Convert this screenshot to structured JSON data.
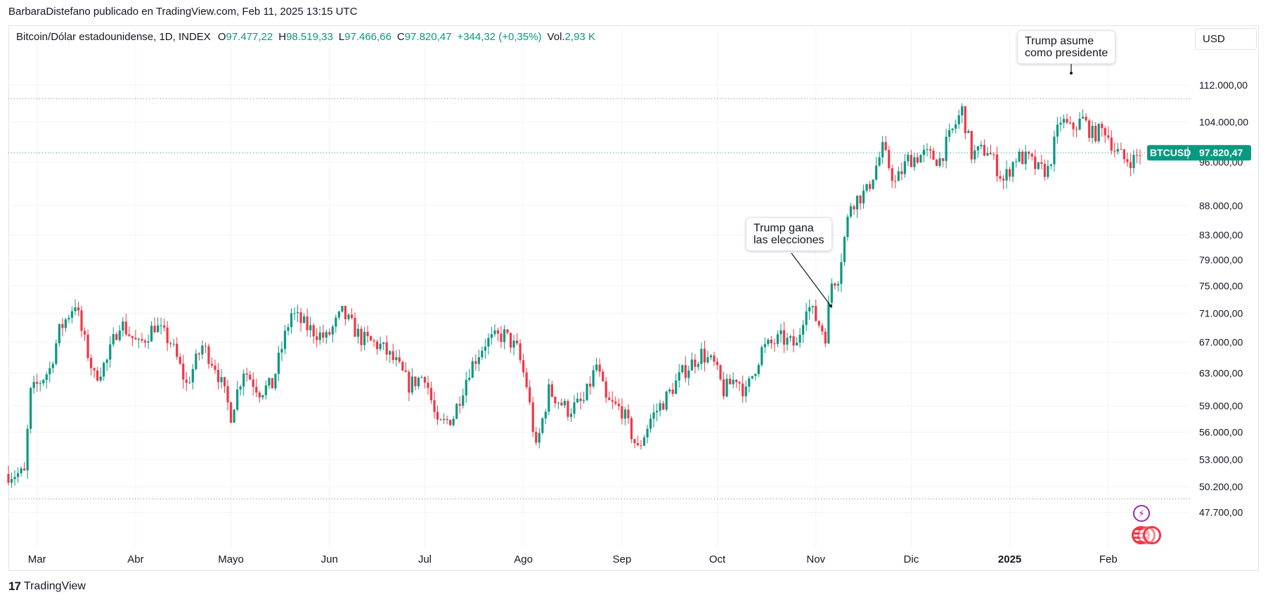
{
  "header": {
    "published_line": "BarbaraDistefano publicado en TradingView.com, Feb 11, 2025 13:15 UTC"
  },
  "legend": {
    "symbol": "Bitcoin/Dólar estadounidense, 1D, INDEX",
    "o_label": "O",
    "o_value": "97.477,22",
    "h_label": "H",
    "h_value": "98.519,33",
    "l_label": "L",
    "l_value": "97.466,66",
    "c_label": "C",
    "c_value": "97.820,47",
    "change": "+344,32 (+0,35%)",
    "vol_label": "Vol.",
    "vol_value": "2,93 K"
  },
  "currency_button": "USD",
  "price_tag": {
    "ticker": "BTCUSD",
    "price": "97.820,47",
    "color": "#089981"
  },
  "annotations": {
    "election": "Trump gana\nlas elecciones",
    "inauguration": "Trump asume\ncomo presidente"
  },
  "footer": {
    "brand": "TradingView"
  },
  "colors": {
    "up": "#089981",
    "down": "#f23645",
    "grid": "#f0f3fa",
    "axis_text": "#131722",
    "dotted_line": "#787b86"
  },
  "icons": [
    "flash-icon",
    "us-flag-icon"
  ],
  "chart_data": {
    "type": "candlestick",
    "title": "",
    "xlabel": "",
    "ylabel": "",
    "y_scale": "log",
    "ylim": [
      45000,
      122000
    ],
    "y_ticks": [
      {
        "value": 112000,
        "label": "112.000,00"
      },
      {
        "value": 104000,
        "label": "104.000,00"
      },
      {
        "value": 96000,
        "label": "96.000,00"
      },
      {
        "value": 88000,
        "label": "88.000,00"
      },
      {
        "value": 83000,
        "label": "83.000,00"
      },
      {
        "value": 79000,
        "label": "79.000,00"
      },
      {
        "value": 75000,
        "label": "75.000,00"
      },
      {
        "value": 71000,
        "label": "71.000,00"
      },
      {
        "value": 67000,
        "label": "67.000,00"
      },
      {
        "value": 63000,
        "label": "63.000,00"
      },
      {
        "value": 59000,
        "label": "59.000,00"
      },
      {
        "value": 56000,
        "label": "56.000,00"
      },
      {
        "value": 53000,
        "label": "53.000,00"
      },
      {
        "value": 50200,
        "label": "50.200,00"
      },
      {
        "value": 47700,
        "label": "47.700,00"
      }
    ],
    "x_ticks": [
      {
        "date": "2024-03-01",
        "label": "Mar",
        "bold": false
      },
      {
        "date": "2024-04-01",
        "label": "Abr",
        "bold": false
      },
      {
        "date": "2024-05-01",
        "label": "Mayo",
        "bold": false
      },
      {
        "date": "2024-06-01",
        "label": "Jun",
        "bold": false
      },
      {
        "date": "2024-07-01",
        "label": "Jul",
        "bold": false
      },
      {
        "date": "2024-08-01",
        "label": "Ago",
        "bold": false
      },
      {
        "date": "2024-09-01",
        "label": "Sep",
        "bold": false
      },
      {
        "date": "2024-10-01",
        "label": "Oct",
        "bold": false
      },
      {
        "date": "2024-11-01",
        "label": "Nov",
        "bold": false
      },
      {
        "date": "2024-12-01",
        "label": "Dic",
        "bold": false
      },
      {
        "date": "2025-01-01",
        "label": "2025",
        "bold": true
      },
      {
        "date": "2025-02-01",
        "label": "Feb",
        "bold": false
      }
    ],
    "reference_lines": [
      {
        "value": 109000
      },
      {
        "value": 97820.47
      },
      {
        "value": 49000
      }
    ],
    "x_range": [
      "2024-02-21",
      "2025-02-11"
    ],
    "candles_anchor_close": [
      [
        "2024-02-21",
        51500
      ],
      [
        "2024-02-26",
        51500
      ],
      [
        "2024-02-28",
        60500
      ],
      [
        "2024-03-05",
        63500
      ],
      [
        "2024-03-08",
        68500
      ],
      [
        "2024-03-13",
        72500
      ],
      [
        "2024-03-15",
        68500
      ],
      [
        "2024-03-19",
        62500
      ],
      [
        "2024-03-23",
        64500
      ],
      [
        "2024-03-27",
        69800
      ],
      [
        "2024-04-02",
        66500
      ],
      [
        "2024-04-07",
        69300
      ],
      [
        "2024-04-12",
        67000
      ],
      [
        "2024-04-17",
        61500
      ],
      [
        "2024-04-22",
        66500
      ],
      [
        "2024-04-26",
        64000
      ],
      [
        "2024-05-01",
        58000
      ],
      [
        "2024-05-05",
        63500
      ],
      [
        "2024-05-10",
        60800
      ],
      [
        "2024-05-14",
        61500
      ],
      [
        "2024-05-20",
        71000
      ],
      [
        "2024-05-25",
        69000
      ],
      [
        "2024-05-31",
        67500
      ],
      [
        "2024-06-05",
        71000
      ],
      [
        "2024-06-11",
        67500
      ],
      [
        "2024-06-17",
        66500
      ],
      [
        "2024-06-22",
        64200
      ],
      [
        "2024-06-26",
        61500
      ],
      [
        "2024-07-01",
        62800
      ],
      [
        "2024-07-05",
        56500
      ],
      [
        "2024-07-10",
        57800
      ],
      [
        "2024-07-15",
        63500
      ],
      [
        "2024-07-20",
        67000
      ],
      [
        "2024-07-26",
        68000
      ],
      [
        "2024-07-30",
        66000
      ],
      [
        "2024-08-02",
        61500
      ],
      [
        "2024-08-05",
        54000
      ],
      [
        "2024-08-09",
        60800
      ],
      [
        "2024-08-15",
        58500
      ],
      [
        "2024-08-20",
        59500
      ],
      [
        "2024-08-24",
        64000
      ],
      [
        "2024-08-27",
        59500
      ],
      [
        "2024-09-01",
        58500
      ],
      [
        "2024-09-06",
        54000
      ],
      [
        "2024-09-10",
        57500
      ],
      [
        "2024-09-15",
        60000
      ],
      [
        "2024-09-20",
        63000
      ],
      [
        "2024-09-26",
        65500
      ],
      [
        "2024-09-30",
        64000
      ],
      [
        "2024-10-03",
        60800
      ],
      [
        "2024-10-07",
        62500
      ],
      [
        "2024-10-10",
        60500
      ],
      [
        "2024-10-15",
        66000
      ],
      [
        "2024-10-21",
        67500
      ],
      [
        "2024-10-26",
        66500
      ],
      [
        "2024-10-29",
        72500
      ],
      [
        "2024-11-04",
        68000
      ],
      [
        "2024-11-06",
        75500
      ],
      [
        "2024-11-08",
        76500
      ],
      [
        "2024-11-12",
        88500
      ],
      [
        "2024-11-17",
        90500
      ],
      [
        "2024-11-22",
        98500
      ],
      [
        "2024-11-26",
        92000
      ],
      [
        "2024-11-30",
        96500
      ],
      [
        "2024-12-05",
        97500
      ],
      [
        "2024-12-10",
        96500
      ],
      [
        "2024-12-17",
        106500
      ],
      [
        "2024-12-20",
        97500
      ],
      [
        "2024-12-25",
        98500
      ],
      [
        "2024-12-30",
        92500
      ],
      [
        "2025-01-03",
        97000
      ],
      [
        "2025-01-07",
        96500
      ],
      [
        "2025-01-10",
        94500
      ],
      [
        "2025-01-13",
        94500
      ],
      [
        "2025-01-17",
        104500
      ],
      [
        "2025-01-20",
        102500
      ],
      [
        "2025-01-24",
        104500
      ],
      [
        "2025-01-27",
        101500
      ],
      [
        "2025-01-31",
        102500
      ],
      [
        "2025-02-03",
        98500
      ],
      [
        "2025-02-06",
        96500
      ],
      [
        "2025-02-09",
        96500
      ],
      [
        "2025-02-11",
        97820
      ]
    ]
  }
}
